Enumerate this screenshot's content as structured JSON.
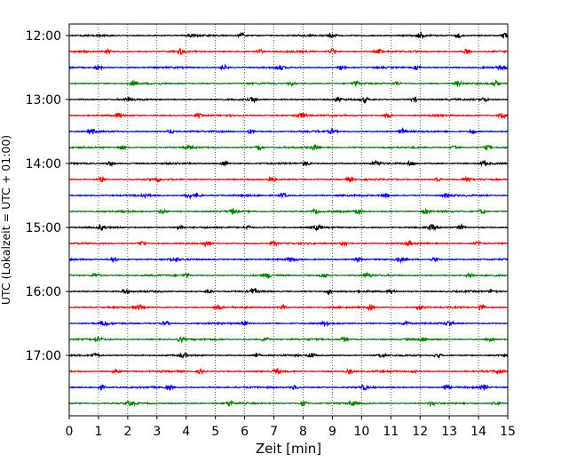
{
  "chart_data": {
    "type": "line",
    "title": "",
    "xlabel": "Zeit  [min]",
    "ylabel": "UTC (Lokalzeit = UTC + 01:00)",
    "xlim": [
      0,
      15
    ],
    "x_ticks": [
      "0",
      "1",
      "2",
      "3",
      "4",
      "5",
      "6",
      "7",
      "8",
      "9",
      "10",
      "11",
      "12",
      "13",
      "14",
      "15"
    ],
    "y_ticks": [
      "12:00",
      "13:00",
      "14:00",
      "15:00",
      "16:00",
      "17:00"
    ],
    "grid": "vertical dotted at each minute",
    "trace_interval_minutes": 15,
    "color_cycle": [
      "#000000",
      "#ff0000",
      "#0000ff",
      "#008000"
    ],
    "series": [
      {
        "start": "12:00",
        "color": "#000000",
        "bursts": [
          4.2,
          5.9,
          9.0,
          12.0,
          13.3,
          14.9
        ]
      },
      {
        "start": "12:15",
        "color": "#ff0000",
        "bursts": [
          1.3,
          3.8,
          6.5,
          9.0,
          10.6,
          13.6
        ]
      },
      {
        "start": "12:30",
        "color": "#0000ff",
        "bursts": [
          1.0,
          5.3,
          7.2,
          9.3,
          11.9,
          14.8
        ]
      },
      {
        "start": "12:45",
        "color": "#008000",
        "bursts": [
          2.2,
          7.6,
          9.8,
          11.2,
          13.3,
          14.6
        ]
      },
      {
        "start": "13:00",
        "color": "#000000",
        "bursts": [
          2.0,
          6.3,
          9.2,
          10.1,
          11.8,
          14.2
        ]
      },
      {
        "start": "13:15",
        "color": "#ff0000",
        "bursts": [
          1.7,
          4.4,
          7.8,
          8.0,
          10.9,
          14.8
        ]
      },
      {
        "start": "13:30",
        "color": "#0000ff",
        "bursts": [
          0.8,
          3.5,
          6.2,
          9.0,
          11.4,
          13.8
        ]
      },
      {
        "start": "13:45",
        "color": "#008000",
        "bursts": [
          1.8,
          4.1,
          6.5,
          8.4,
          13.2,
          14.3
        ]
      },
      {
        "start": "14:00",
        "color": "#000000",
        "bursts": [
          1.4,
          5.3,
          8.1,
          10.5,
          11.7,
          14.2
        ]
      },
      {
        "start": "14:15",
        "color": "#ff0000",
        "bursts": [
          1.1,
          3.0,
          6.9,
          9.6,
          12.6,
          13.6
        ]
      },
      {
        "start": "14:30",
        "color": "#0000ff",
        "bursts": [
          2.6,
          4.1,
          4.4,
          7.3,
          10.8,
          12.9
        ]
      },
      {
        "start": "14:45",
        "color": "#008000",
        "bursts": [
          3.2,
          5.6,
          8.4,
          9.9,
          12.2,
          14.1
        ]
      },
      {
        "start": "15:00",
        "color": "#000000",
        "bursts": [
          1.1,
          3.8,
          6.1,
          8.5,
          12.4,
          13.4
        ]
      },
      {
        "start": "15:15",
        "color": "#ff0000",
        "bursts": [
          2.5,
          4.7,
          7.0,
          9.4,
          11.6,
          14.0
        ]
      },
      {
        "start": "15:30",
        "color": "#0000ff",
        "bursts": [
          1.5,
          3.6,
          7.6,
          9.9,
          11.3,
          12.5
        ]
      },
      {
        "start": "15:45",
        "color": "#008000",
        "bursts": [
          0.9,
          4.0,
          6.8,
          8.7,
          10.2,
          13.7
        ]
      },
      {
        "start": "16:00",
        "color": "#000000",
        "bursts": [
          1.9,
          4.8,
          6.3,
          8.9,
          11.0,
          14.5
        ]
      },
      {
        "start": "16:15",
        "color": "#ff0000",
        "bursts": [
          2.4,
          5.1,
          7.3,
          10.3,
          12.0,
          14.1
        ]
      },
      {
        "start": "16:30",
        "color": "#0000ff",
        "bursts": [
          1.2,
          3.3,
          6.0,
          8.8,
          11.5,
          13.0
        ]
      },
      {
        "start": "16:45",
        "color": "#008000",
        "bursts": [
          1.0,
          3.8,
          6.7,
          9.4,
          12.1,
          14.4
        ]
      },
      {
        "start": "17:00",
        "color": "#000000",
        "bursts": [
          0.9,
          3.9,
          6.4,
          8.3,
          10.7,
          12.6
        ]
      },
      {
        "start": "17:15",
        "color": "#ff0000",
        "bursts": [
          1.6,
          4.5,
          7.1,
          9.6,
          11.8,
          14.7
        ]
      },
      {
        "start": "17:30",
        "color": "#0000ff",
        "bursts": [
          1.1,
          3.4,
          7.7,
          10.1,
          12.9,
          14.2
        ]
      },
      {
        "start": "17:45",
        "color": "#008000",
        "bursts": [
          2.1,
          5.5,
          8.0,
          9.7,
          12.4,
          14.6
        ]
      }
    ]
  }
}
